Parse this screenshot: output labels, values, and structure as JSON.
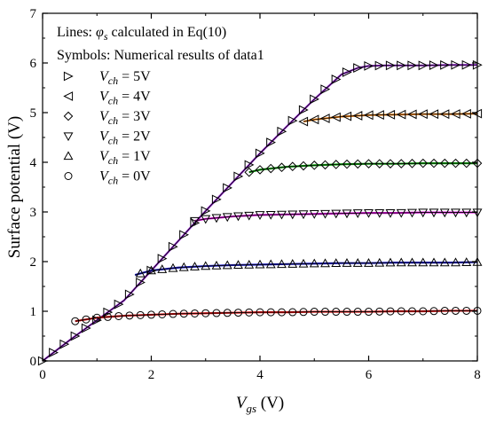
{
  "chart_data": {
    "type": "line",
    "title": "",
    "xlabel_main": "V",
    "xlabel_sub": "gs",
    "xlabel_unit": " (V)",
    "ylabel": "Surface potential (V)",
    "xlim": [
      0,
      8
    ],
    "ylim": [
      0,
      7
    ],
    "x_ticks": [
      "0",
      "2",
      "4",
      "6",
      "8"
    ],
    "y_ticks": [
      "0",
      "1",
      "2",
      "3",
      "4",
      "5",
      "6",
      "7"
    ],
    "grid": false,
    "legend_position": "top-left",
    "legend": {
      "line1_prefix": "Lines: ",
      "line1_symbol": "φ",
      "line1_symbol_sub": "s",
      "line1_suffix": " calculated in Eq(10)",
      "line2": "Symbols: Numerical results of data1",
      "entry_main": "V",
      "entry_sub": "ch"
    },
    "series": [
      {
        "vch": 5,
        "legend_value": " = 5V",
        "marker": "triangle-right",
        "color": "#9a2bd8",
        "x": [
          0,
          0.5,
          1,
          1.5,
          2,
          2.5,
          3,
          3.5,
          4,
          4.5,
          5,
          5.5,
          5.8,
          6,
          6.3,
          6.6,
          7,
          7.5,
          8
        ],
        "y": [
          0,
          0.42,
          0.82,
          1.22,
          1.82,
          2.42,
          3.02,
          3.6,
          4.18,
          4.73,
          5.27,
          5.77,
          5.9,
          5.94,
          5.95,
          5.95,
          5.95,
          5.96,
          5.96
        ]
      },
      {
        "vch": 4,
        "legend_value": " = 4V",
        "marker": "triangle-left",
        "color": "#ff8c1a",
        "x": [
          4.8,
          5,
          5.5,
          6,
          6.5,
          7,
          7.5,
          8
        ],
        "y": [
          4.82,
          4.86,
          4.92,
          4.95,
          4.96,
          4.97,
          4.97,
          4.98
        ]
      },
      {
        "vch": 3,
        "legend_value": " = 3V",
        "marker": "diamond",
        "color": "#0aa80a",
        "x": [
          3.8,
          4,
          4.5,
          5,
          5.5,
          6,
          6.5,
          7,
          7.5,
          8
        ],
        "y": [
          3.8,
          3.85,
          3.91,
          3.94,
          3.96,
          3.97,
          3.97,
          3.98,
          3.98,
          3.98
        ]
      },
      {
        "vch": 2,
        "legend_value": " = 2V",
        "marker": "triangle-down",
        "color": "#e010e0",
        "x": [
          2.8,
          3,
          3.5,
          4,
          4.5,
          5,
          5.5,
          6,
          6.5,
          7,
          7.5,
          8
        ],
        "y": [
          2.82,
          2.86,
          2.91,
          2.94,
          2.95,
          2.96,
          2.97,
          2.98,
          2.98,
          2.99,
          2.99,
          2.99
        ]
      },
      {
        "vch": 1,
        "legend_value": " = 1V",
        "marker": "triangle-up",
        "color": "#2020d0",
        "x": [
          1.7,
          2,
          2.5,
          3,
          3.5,
          4,
          4.5,
          5,
          5.5,
          6,
          6.5,
          7,
          7.5,
          8
        ],
        "y": [
          1.73,
          1.82,
          1.88,
          1.91,
          1.93,
          1.94,
          1.95,
          1.96,
          1.97,
          1.97,
          1.98,
          1.98,
          1.98,
          1.99
        ]
      },
      {
        "vch": 0,
        "legend_value": " = 0V",
        "marker": "circle",
        "color": "#e01010",
        "x": [
          0.6,
          1,
          1.5,
          2,
          2.5,
          3,
          3.5,
          4,
          4.5,
          5,
          5.5,
          6,
          6.5,
          7,
          7.5,
          8
        ],
        "y": [
          0.8,
          0.87,
          0.91,
          0.93,
          0.95,
          0.96,
          0.97,
          0.98,
          0.98,
          0.99,
          0.99,
          0.99,
          1.0,
          1.0,
          1.01,
          1.01
        ]
      }
    ]
  }
}
